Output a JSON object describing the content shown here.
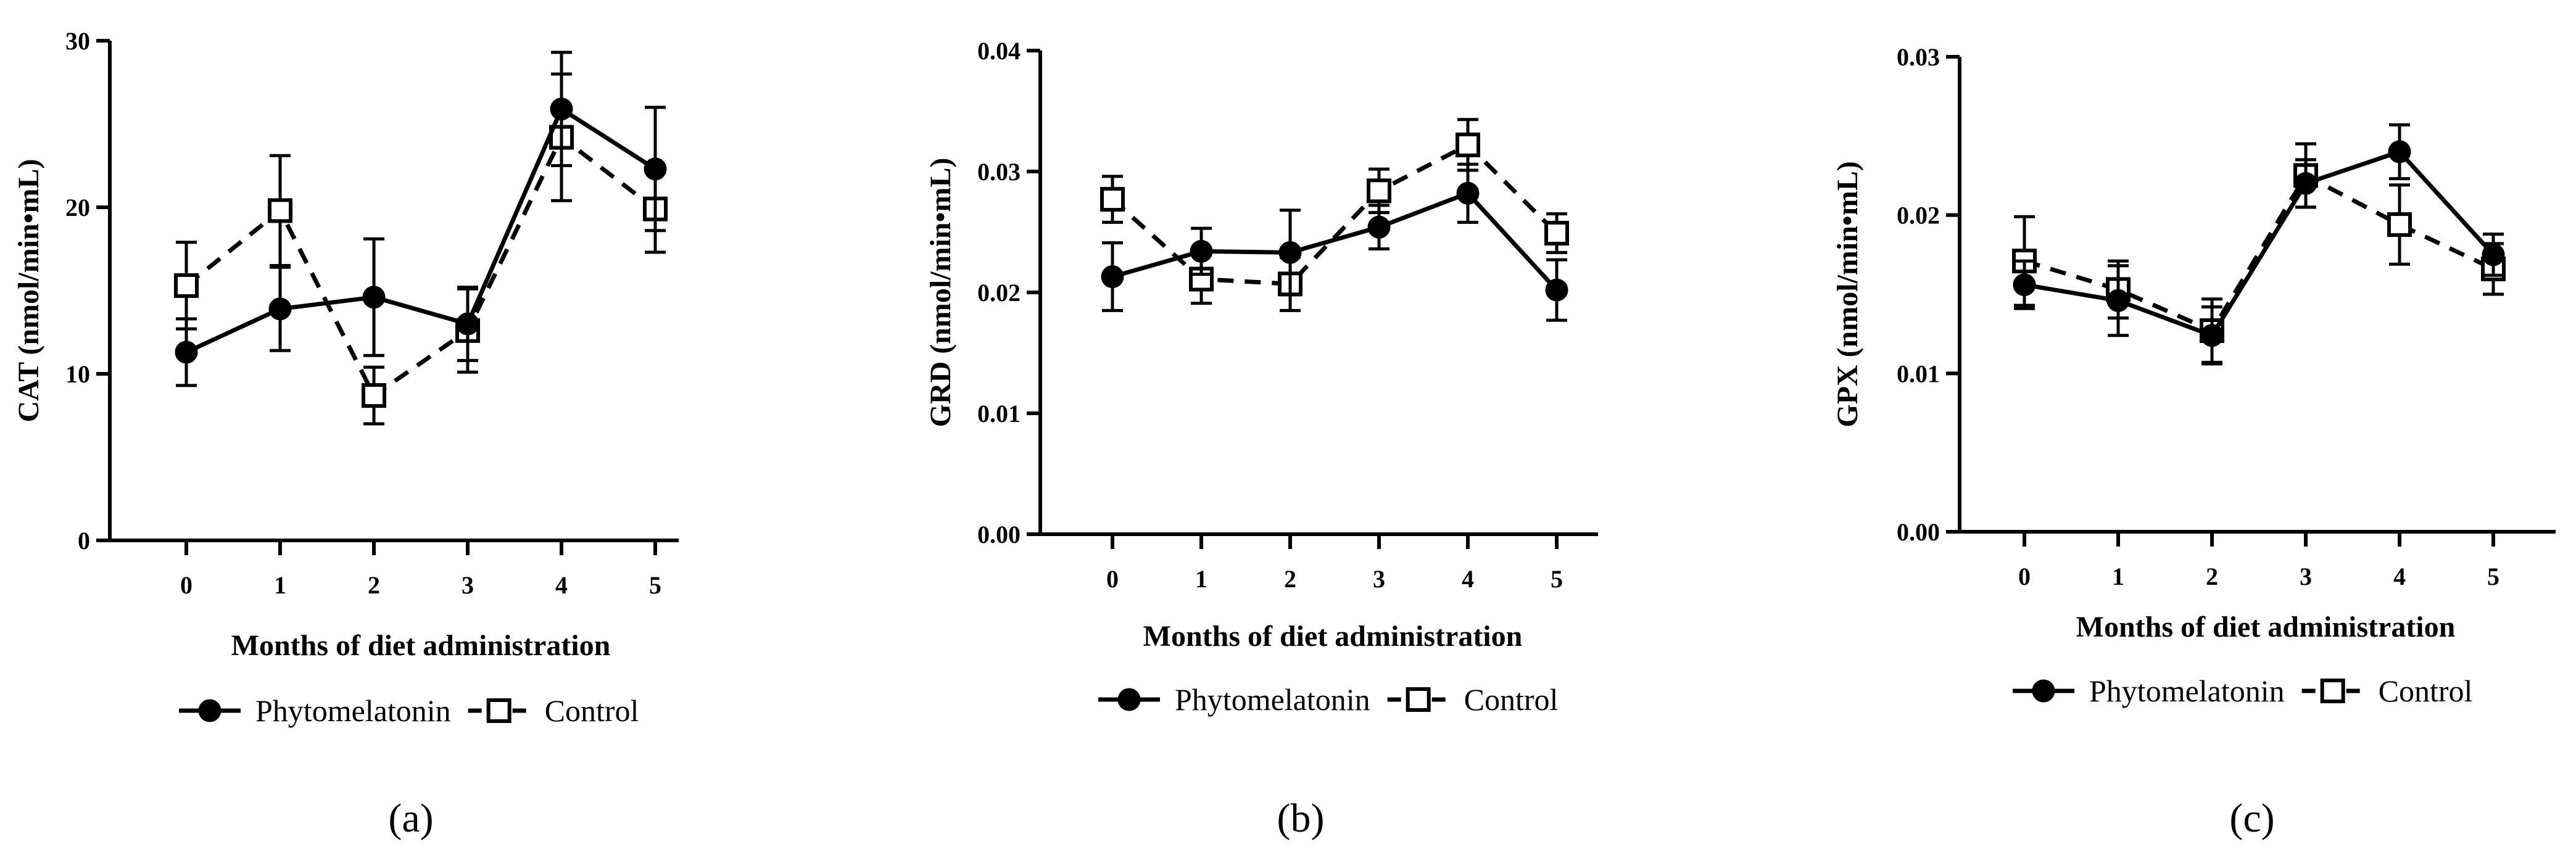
{
  "chart_data": [
    {
      "type": "line",
      "panel_label": "(a)",
      "title": "",
      "xlabel": "Months of diet administration",
      "ylabel": "CAT (nmol/min•mL)",
      "x": [
        0,
        1,
        2,
        3,
        4,
        5
      ],
      "x_ticks": [
        "0",
        "1",
        "2",
        "3",
        "4",
        "5"
      ],
      "ylim": [
        0,
        30
      ],
      "y_ticks": [
        "0",
        "10",
        "20",
        "30"
      ],
      "y_tick_values": [
        0,
        10,
        20,
        30
      ],
      "legend": "bottom",
      "series": [
        {
          "name": "Phytomelatonin",
          "marker": "filled-circle",
          "line": "solid",
          "values": [
            11.3,
            13.9,
            14.6,
            13.0,
            25.9,
            22.3
          ],
          "errors": [
            2.0,
            2.5,
            3.5,
            2.2,
            3.4,
            3.7
          ]
        },
        {
          "name": "Control",
          "marker": "open-square",
          "line": "dashed",
          "values": [
            15.3,
            19.8,
            8.7,
            12.6,
            24.2,
            19.9
          ],
          "errors": [
            2.6,
            3.3,
            1.7,
            2.5,
            3.8,
            2.6
          ]
        }
      ]
    },
    {
      "type": "line",
      "panel_label": "(b)",
      "title": "",
      "xlabel": "Months of diet administration",
      "ylabel": "GRD (nmol/min•mL)",
      "x": [
        0,
        1,
        2,
        3,
        4,
        5
      ],
      "x_ticks": [
        "0",
        "1",
        "2",
        "3",
        "4",
        "5"
      ],
      "ylim": [
        0,
        0.04
      ],
      "y_ticks": [
        "0.00",
        "0.01",
        "0.02",
        "0.03",
        "0.04"
      ],
      "y_tick_values": [
        0,
        0.01,
        0.02,
        0.03,
        0.04
      ],
      "legend": "bottom",
      "series": [
        {
          "name": "Phytomelatonin",
          "marker": "filled-circle",
          "line": "solid",
          "values": [
            0.0213,
            0.0234,
            0.0233,
            0.0254,
            0.0282,
            0.0202
          ],
          "errors": [
            0.0028,
            0.0019,
            0.0035,
            0.0018,
            0.0024,
            0.0025
          ]
        },
        {
          "name": "Control",
          "marker": "open-square",
          "line": "dashed",
          "values": [
            0.0277,
            0.0211,
            0.0207,
            0.0284,
            0.0322,
            0.0249
          ],
          "errors": [
            0.0019,
            0.002,
            0.0022,
            0.0018,
            0.0021,
            0.0016
          ]
        }
      ]
    },
    {
      "type": "line",
      "panel_label": "(c)",
      "title": "",
      "xlabel": "Months of diet administration",
      "ylabel": "GPX (nmol/min•mL)",
      "x": [
        0,
        1,
        2,
        3,
        4,
        5
      ],
      "x_ticks": [
        "0",
        "1",
        "2",
        "3",
        "4",
        "5"
      ],
      "ylim": [
        0,
        0.03
      ],
      "y_ticks": [
        "0.00",
        "0.01",
        "0.02",
        "0.03"
      ],
      "y_tick_values": [
        0,
        0.01,
        0.02,
        0.03
      ],
      "legend": "bottom",
      "series": [
        {
          "name": "Phytomelatonin",
          "marker": "filled-circle",
          "line": "solid",
          "values": [
            0.0156,
            0.0146,
            0.0124,
            0.022,
            0.024,
            0.0175
          ],
          "errors": [
            0.0015,
            0.0022,
            0.0018,
            0.0015,
            0.0017,
            0.0013
          ]
        },
        {
          "name": "Control",
          "marker": "open-square",
          "line": "dashed",
          "values": [
            0.0171,
            0.0153,
            0.0127,
            0.0225,
            0.0194,
            0.0166
          ],
          "errors": [
            0.0028,
            0.0018,
            0.002,
            0.002,
            0.0025,
            0.0016
          ]
        }
      ]
    }
  ]
}
